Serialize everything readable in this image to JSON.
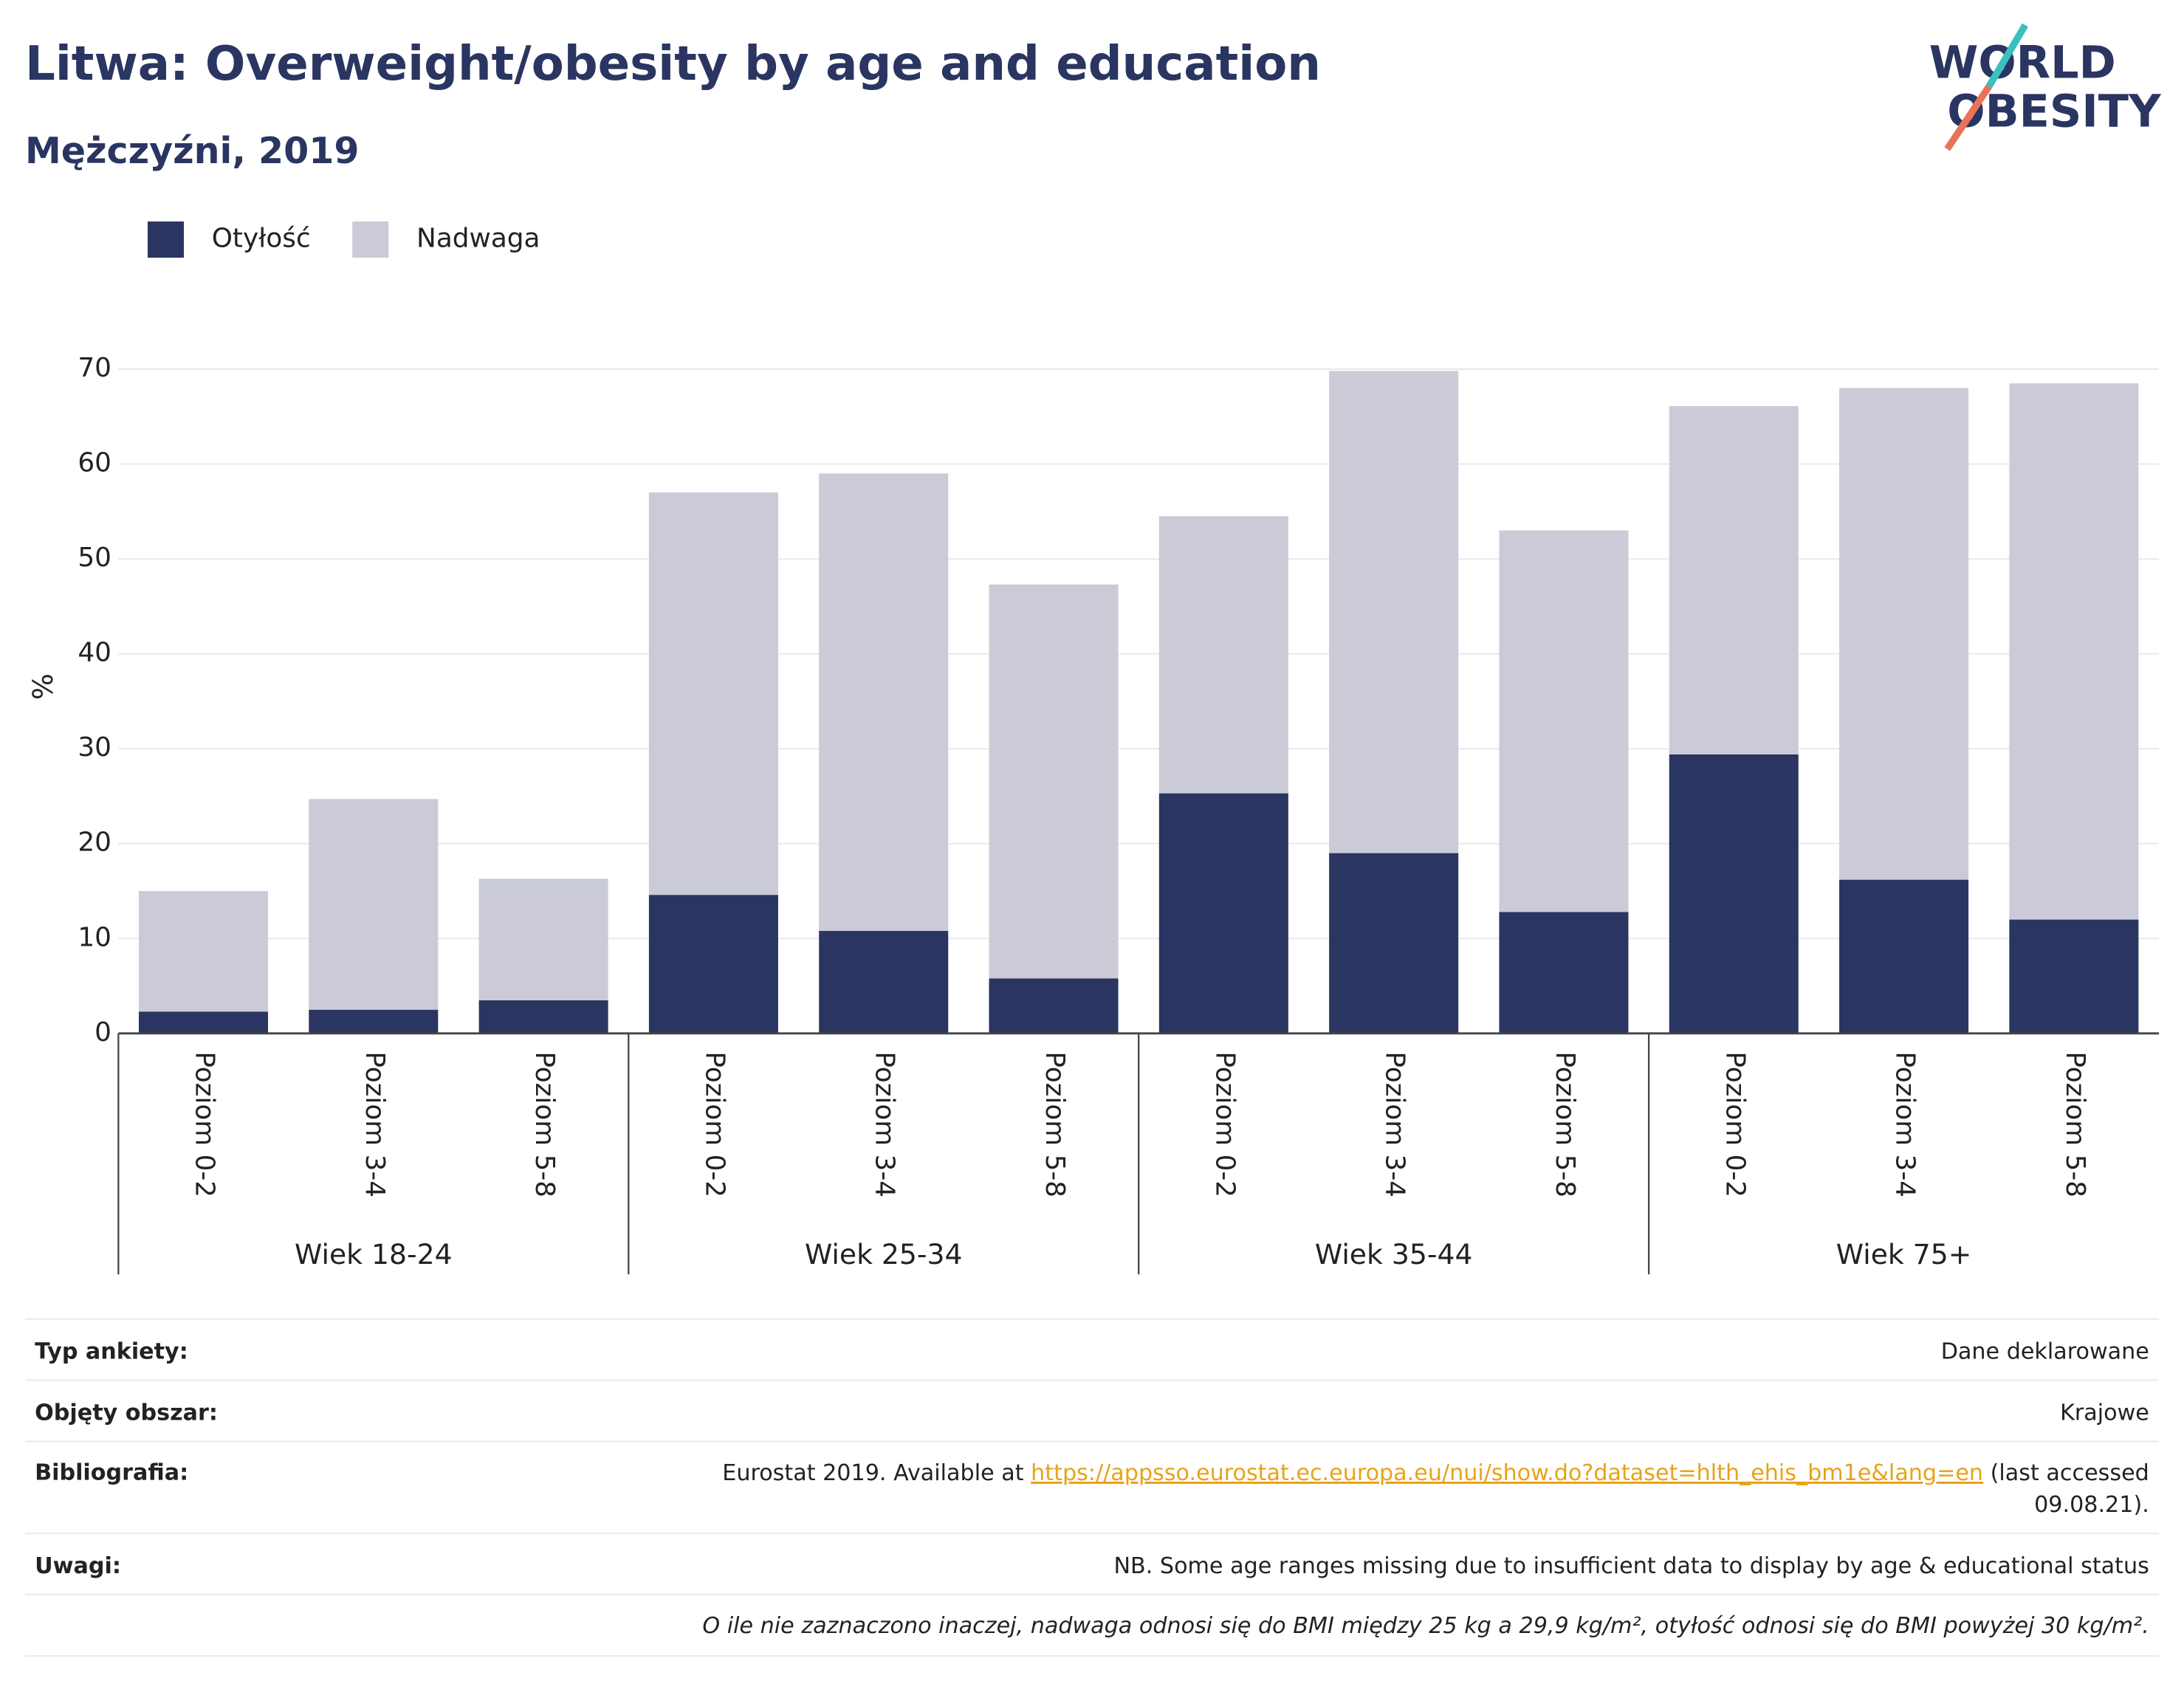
{
  "chart_data": {
    "type": "stacked_bar",
    "title": "Litwa: Overweight/obesity by age and education",
    "subtitle": "Mężczyźni, 2019",
    "y_label": "%",
    "categories": [
      "Poziom 0-2",
      "Poziom 3-4",
      "Poziom 5-8",
      "Poziom 0-2",
      "Poziom 3-4",
      "Poziom 5-8",
      "Poziom 0-2",
      "Poziom 3-4",
      "Poziom 5-8",
      "Poziom 0-2",
      "Poziom 3-4",
      "Poziom 5-8"
    ],
    "groups": [
      "Wiek 18-24",
      "Wiek 25-34",
      "Wiek 35-44",
      "Wiek 75+"
    ],
    "series": [
      {
        "name": "Otyłość",
        "color": "#2a3561",
        "values": [
          2.3,
          2.5,
          3.5,
          14.6,
          10.8,
          5.8,
          25.3,
          19,
          12.8,
          29.4,
          16.2,
          12
        ]
      },
      {
        "name": "Nadwaga",
        "color": "#cacbd7",
        "values": [
          12.7,
          22.2,
          12.8,
          42.4,
          48.2,
          41.5,
          29.2,
          50.8,
          40.2,
          36.7,
          51.8,
          56.5
        ]
      }
    ],
    "ylim": [
      0,
      70
    ],
    "yticks": [
      0,
      10,
      20,
      30,
      40,
      50,
      60,
      70
    ],
    "grid": true,
    "legend": "top-left"
  },
  "logo": {
    "line1": "WORLD",
    "line2": "OBESITY"
  },
  "footer": {
    "survey": {
      "label": "Typ ankiety:",
      "value": "Dane deklarowane"
    },
    "area": {
      "label": "Objęty obszar:",
      "value": "Krajowe"
    },
    "bibliography": {
      "label": "Bibliografia:",
      "text": "Eurostat 2019. Available at ",
      "link": "https://appsso.eurostat.ec.europa.eu/nui/show.do?dataset=hlth_ehis_bm1e&lang=en",
      "suffix": " (last accessed",
      "suffix2": "09.08.21)."
    },
    "notes": {
      "label": "Uwagi:",
      "value": "NB. Some age ranges missing due to insufficient data to display by age & educational status"
    },
    "definition": "O ile nie zaznaczono inaczej, nadwaga odnosi się do BMI między 25 kg a 29,9 kg/m², otyłość odnosi się do BMI powyżej 30 kg/m²."
  }
}
